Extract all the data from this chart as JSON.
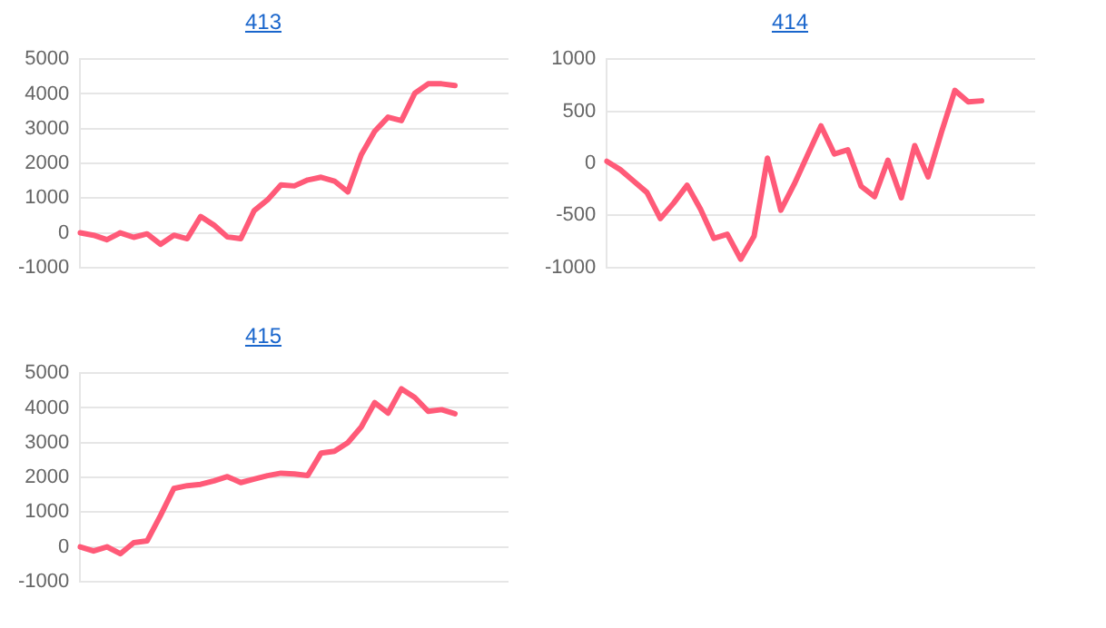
{
  "chart_data": [
    {
      "type": "line",
      "title": "413",
      "categories": [
        null,
        null,
        null,
        null,
        null,
        null,
        null,
        null,
        null,
        null,
        null,
        null,
        null,
        null,
        null,
        null,
        null,
        null,
        null,
        null,
        null,
        null,
        null,
        null,
        null,
        null,
        null,
        null,
        null,
        null,
        null,
        null,
        null
      ],
      "series": [
        {
          "color": "#ff5a78",
          "values": [
            0,
            -70,
            -200,
            0,
            -130,
            -30,
            -330,
            -70,
            -170,
            470,
            220,
            -120,
            -170,
            640,
            950,
            1380,
            1350,
            1520,
            1600,
            1490,
            1180,
            2250,
            2920,
            3330,
            3230,
            4020,
            4290,
            4290,
            4240,
            null,
            null,
            null,
            null
          ]
        }
      ],
      "ylim": [
        -1000,
        5000
      ],
      "yticks": [
        -1000,
        0,
        1000,
        2000,
        3000,
        4000,
        5000
      ],
      "grid": "y",
      "legend": false,
      "marker": "none",
      "tick_labels": "y"
    },
    {
      "type": "line",
      "title": "414",
      "categories": [
        null,
        null,
        null,
        null,
        null,
        null,
        null,
        null,
        null,
        null,
        null,
        null,
        null,
        null,
        null,
        null,
        null,
        null,
        null,
        null,
        null,
        null,
        null,
        null,
        null,
        null,
        null,
        null,
        null,
        null,
        null,
        null,
        null
      ],
      "series": [
        {
          "color": "#ff5a78",
          "values": [
            20,
            -60,
            -170,
            -280,
            -530,
            -380,
            -210,
            -440,
            -720,
            -680,
            -920,
            -700,
            50,
            -450,
            -200,
            80,
            360,
            90,
            130,
            -220,
            -320,
            30,
            -330,
            170,
            -130,
            300,
            700,
            590,
            600,
            null,
            null,
            null,
            null
          ]
        }
      ],
      "ylim": [
        -1000,
        1000
      ],
      "yticks": [
        -1000,
        -500,
        0,
        500,
        1000
      ],
      "grid": "y",
      "legend": false,
      "marker": "none",
      "tick_labels": "y"
    },
    {
      "type": "line",
      "title": "415",
      "categories": [
        null,
        null,
        null,
        null,
        null,
        null,
        null,
        null,
        null,
        null,
        null,
        null,
        null,
        null,
        null,
        null,
        null,
        null,
        null,
        null,
        null,
        null,
        null,
        null,
        null,
        null,
        null,
        null,
        null,
        null,
        null,
        null,
        null
      ],
      "series": [
        {
          "color": "#ff5a78",
          "values": [
            0,
            -120,
            0,
            -200,
            120,
            170,
            900,
            1680,
            1760,
            1800,
            1900,
            2020,
            1850,
            1950,
            2050,
            2120,
            2100,
            2050,
            2700,
            2750,
            3000,
            3450,
            4150,
            3850,
            4550,
            4300,
            3900,
            3950,
            3830,
            null,
            null,
            null,
            null
          ]
        }
      ],
      "ylim": [
        -1000,
        5000
      ],
      "yticks": [
        -1000,
        0,
        1000,
        2000,
        3000,
        4000,
        5000
      ],
      "grid": "y",
      "legend": false,
      "marker": "none",
      "tick_labels": "y"
    }
  ]
}
